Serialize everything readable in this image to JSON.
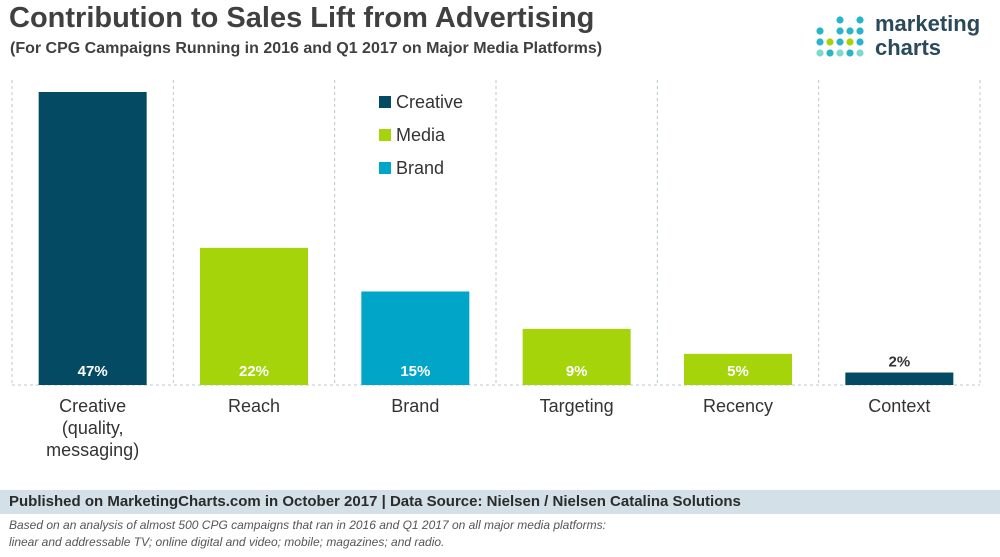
{
  "title": "Contribution to Sales Lift from Advertising",
  "subtitle": "(For CPG Campaigns Running in 2016 and Q1 2017 on Major Media Platforms)",
  "logo": {
    "line1": "marketing",
    "line2": "charts",
    "icon": "dot-grid-logo-icon"
  },
  "colors": {
    "Creative": "#034a62",
    "Media": "#a6d40a",
    "Brand": "#00a5c8"
  },
  "chart_data": {
    "type": "bar",
    "categories": [
      [
        "Creative",
        "(quality,",
        "messaging)"
      ],
      [
        "Reach"
      ],
      [
        "Brand"
      ],
      [
        "Targeting"
      ],
      [
        "Recency"
      ],
      [
        "Context"
      ]
    ],
    "values": [
      47,
      22,
      15,
      9,
      5,
      2
    ],
    "value_labels": [
      "47%",
      "22%",
      "15%",
      "9%",
      "5%",
      "2%"
    ],
    "groups": [
      "Creative",
      "Media",
      "Brand",
      "Media",
      "Media",
      "Creative"
    ],
    "legend": [
      "Creative",
      "Media",
      "Brand"
    ],
    "legend_position": "top-center",
    "ylim": [
      0,
      50
    ],
    "grid": "vertical-dashed-separators"
  },
  "footer": {
    "published": "Published on MarketingCharts.com in October 2017 | Data Source: Nielsen / Nielsen Catalina Solutions",
    "note_line1": "Based on an analysis of almost 500 CPG campaigns that ran in 2016 and Q1 2017 on all major media platforms:",
    "note_line2": "linear and addressable TV; online digital and video; mobile; magazines; and radio."
  }
}
